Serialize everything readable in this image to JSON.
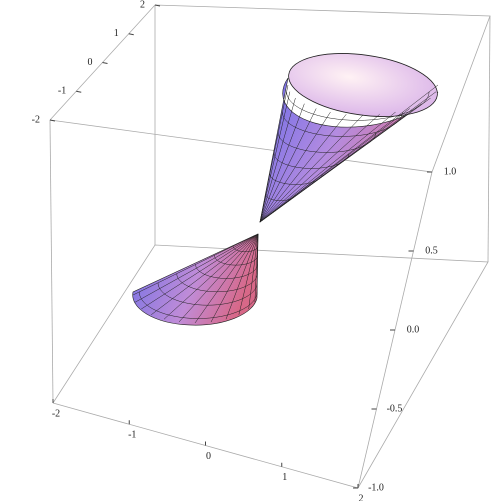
{
  "chart_data": {
    "type": "surface3d",
    "xlim": [
      -2,
      2
    ],
    "xticks": [
      -2,
      -1,
      0,
      1,
      2
    ],
    "ylim": [
      -2,
      2
    ],
    "yticks": [
      -2,
      -1,
      0,
      1,
      2
    ],
    "zlim": [
      -1,
      1
    ],
    "zticks": [
      {
        "value": -1,
        "label": "-1.0"
      },
      {
        "value": -0.5,
        "label": "-0.5"
      },
      {
        "value": 0,
        "label": "0.0"
      },
      {
        "value": 0.5,
        "label": "0.5"
      },
      {
        "value": 1,
        "label": "1.0"
      }
    ]
  }
}
